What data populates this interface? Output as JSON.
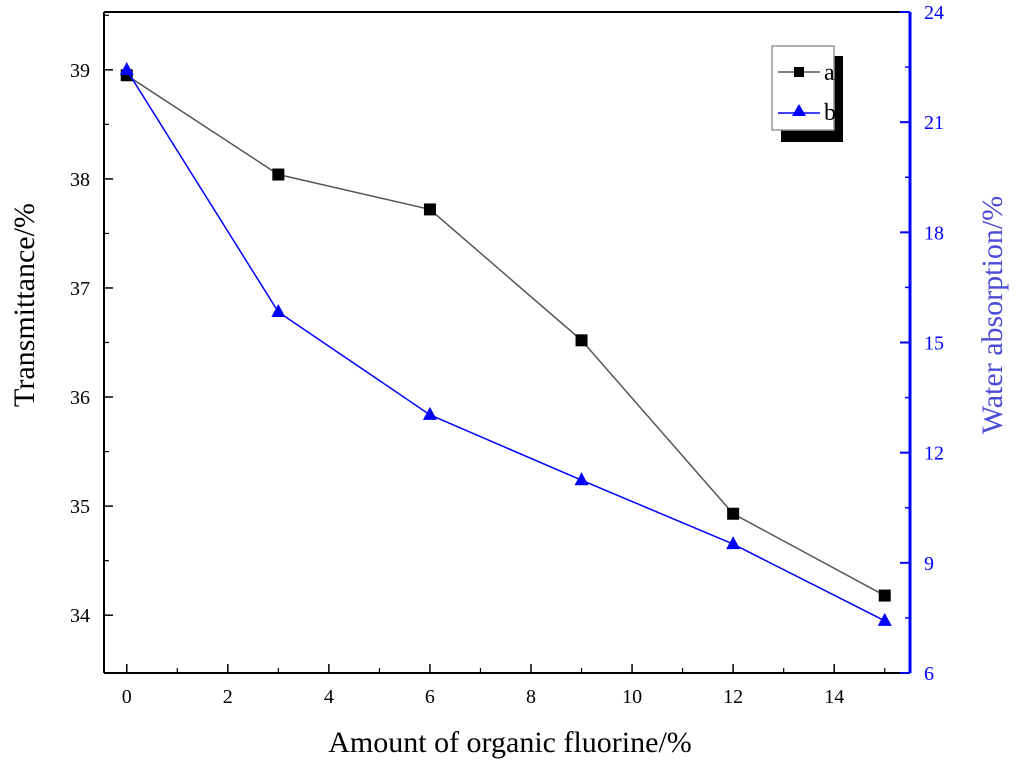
{
  "chart_data": {
    "type": "line",
    "title": "",
    "xlabel": "Amount of organic fluorine/%",
    "ylabel_left": "Transmittance/%",
    "ylabel_right": "Water absorption/%",
    "xlim": [
      -0.45,
      15.5
    ],
    "ylim_left": [
      33.47,
      39.53
    ],
    "ylim_right": [
      6,
      24
    ],
    "x_ticks": [
      0,
      2,
      4,
      6,
      8,
      10,
      12,
      14
    ],
    "y_left_ticks": [
      34,
      35,
      36,
      37,
      38,
      39
    ],
    "y_right_ticks": [
      6,
      9,
      12,
      15,
      18,
      21,
      24
    ],
    "grid": false,
    "legend_position": "top-right",
    "series": [
      {
        "name": "a",
        "axis": "left",
        "marker": "square",
        "color": "#000000",
        "line_color": "#555555",
        "x": [
          0,
          3,
          6,
          9,
          12,
          15
        ],
        "y": [
          38.95,
          38.04,
          37.72,
          36.52,
          34.93,
          34.18
        ]
      },
      {
        "name": "b",
        "axis": "right",
        "marker": "triangle",
        "color": "#0000ff",
        "line_color": "#0000ff",
        "x": [
          0,
          3,
          6,
          9,
          12,
          15
        ],
        "y": [
          22.42,
          15.83,
          13.03,
          11.25,
          9.51,
          7.42
        ]
      }
    ],
    "colors": {
      "left_axis": "#000000",
      "right_axis": "#0000ff",
      "right_label": "#4b4bd6"
    }
  }
}
